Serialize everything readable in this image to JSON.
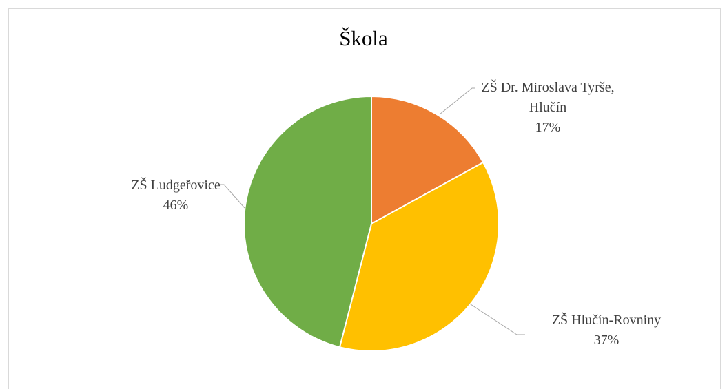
{
  "chart_data": {
    "type": "pie",
    "title": "Škola",
    "categories": [
      "ZŠ Dr. Miroslava Tyrše, Hlučín",
      "ZŠ Hlučín-Rovniny",
      "ZŠ Ludgeřovice"
    ],
    "values": [
      17,
      37,
      46
    ],
    "value_labels": [
      "17%",
      "37%",
      "46%"
    ],
    "colors": [
      "#ed7d31",
      "#ffc000",
      "#70ad47"
    ]
  }
}
